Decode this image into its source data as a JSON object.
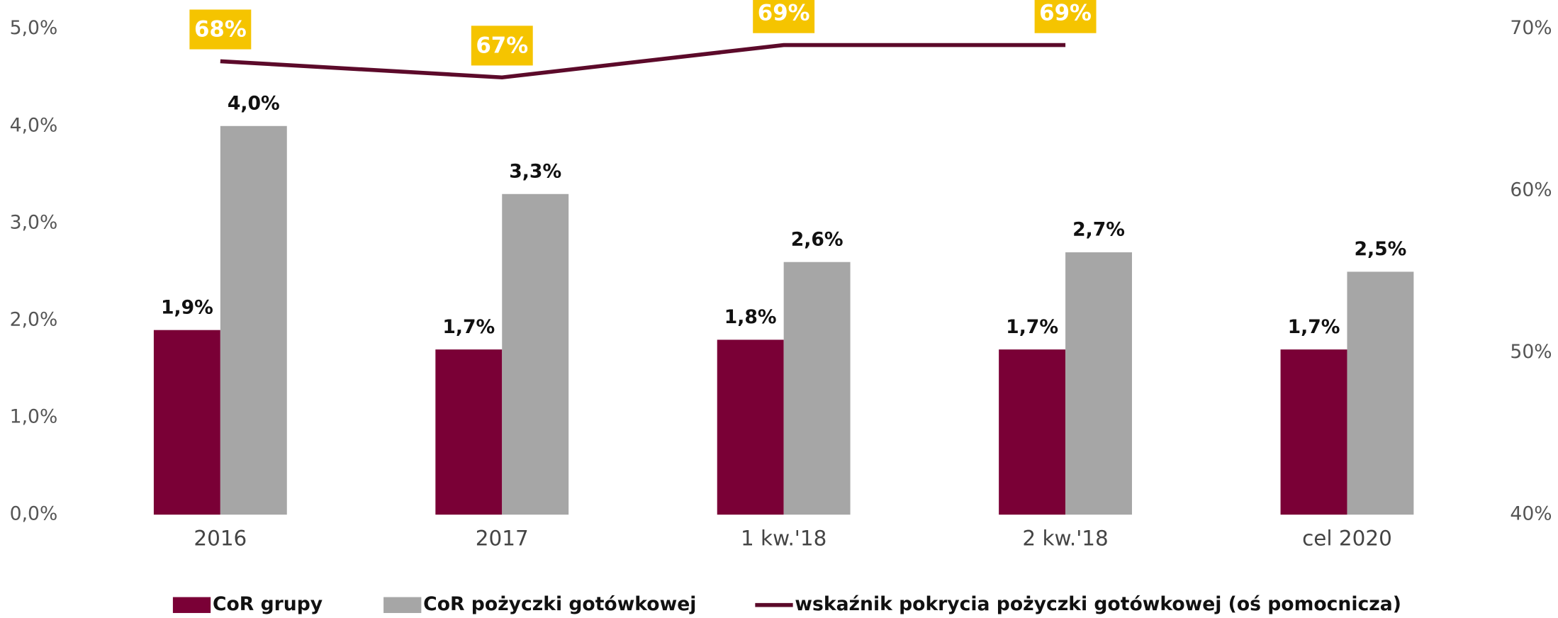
{
  "chart_data": {
    "type": "bar",
    "categories": [
      "2016",
      "2017",
      "1 kw.'18",
      "2 kw.'18",
      "cel 2020"
    ],
    "series": [
      {
        "name": "CoR grupy",
        "color": "#7a0036",
        "values": [
          1.9,
          1.7,
          1.8,
          1.7,
          1.7
        ],
        "value_labels": [
          "1,9%",
          "1,7%",
          "1,8%",
          "1,7%",
          "1,7%"
        ]
      },
      {
        "name": "CoR pożyczki gotówkowej",
        "color": "#a6a6a6",
        "values": [
          4.0,
          3.3,
          2.6,
          2.7,
          2.5
        ],
        "value_labels": [
          "4,0%",
          "3,3%",
          "2,6%",
          "2,7%",
          "2,5%"
        ]
      },
      {
        "name": "wskaźnik pokrycia pożyczki gotówkowej (oś pomocnicza)",
        "type": "line",
        "axis": "y2",
        "color": "#5c0a2a",
        "values": [
          68,
          67,
          69,
          69,
          null
        ],
        "value_labels": [
          "68%",
          "67%",
          "69%",
          "69%",
          null
        ],
        "label_color": "#f5c400"
      }
    ],
    "ylim": [
      0,
      5
    ],
    "yticks": [
      {
        "value": 0,
        "label": "0,0%"
      },
      {
        "value": 1,
        "label": "1,0%"
      },
      {
        "value": 2,
        "label": "2,0%"
      },
      {
        "value": 3,
        "label": "3,0%"
      },
      {
        "value": 4,
        "label": "4,0%"
      },
      {
        "value": 5,
        "label": "5,0%"
      }
    ],
    "y2lim": [
      40,
      70
    ],
    "y2ticks": [
      {
        "value": 40,
        "label": "40%"
      },
      {
        "value": 50,
        "label": "50%"
      },
      {
        "value": 60,
        "label": "60%"
      },
      {
        "value": 70,
        "label": "70%"
      }
    ],
    "grid": false,
    "legend": "bottom"
  }
}
